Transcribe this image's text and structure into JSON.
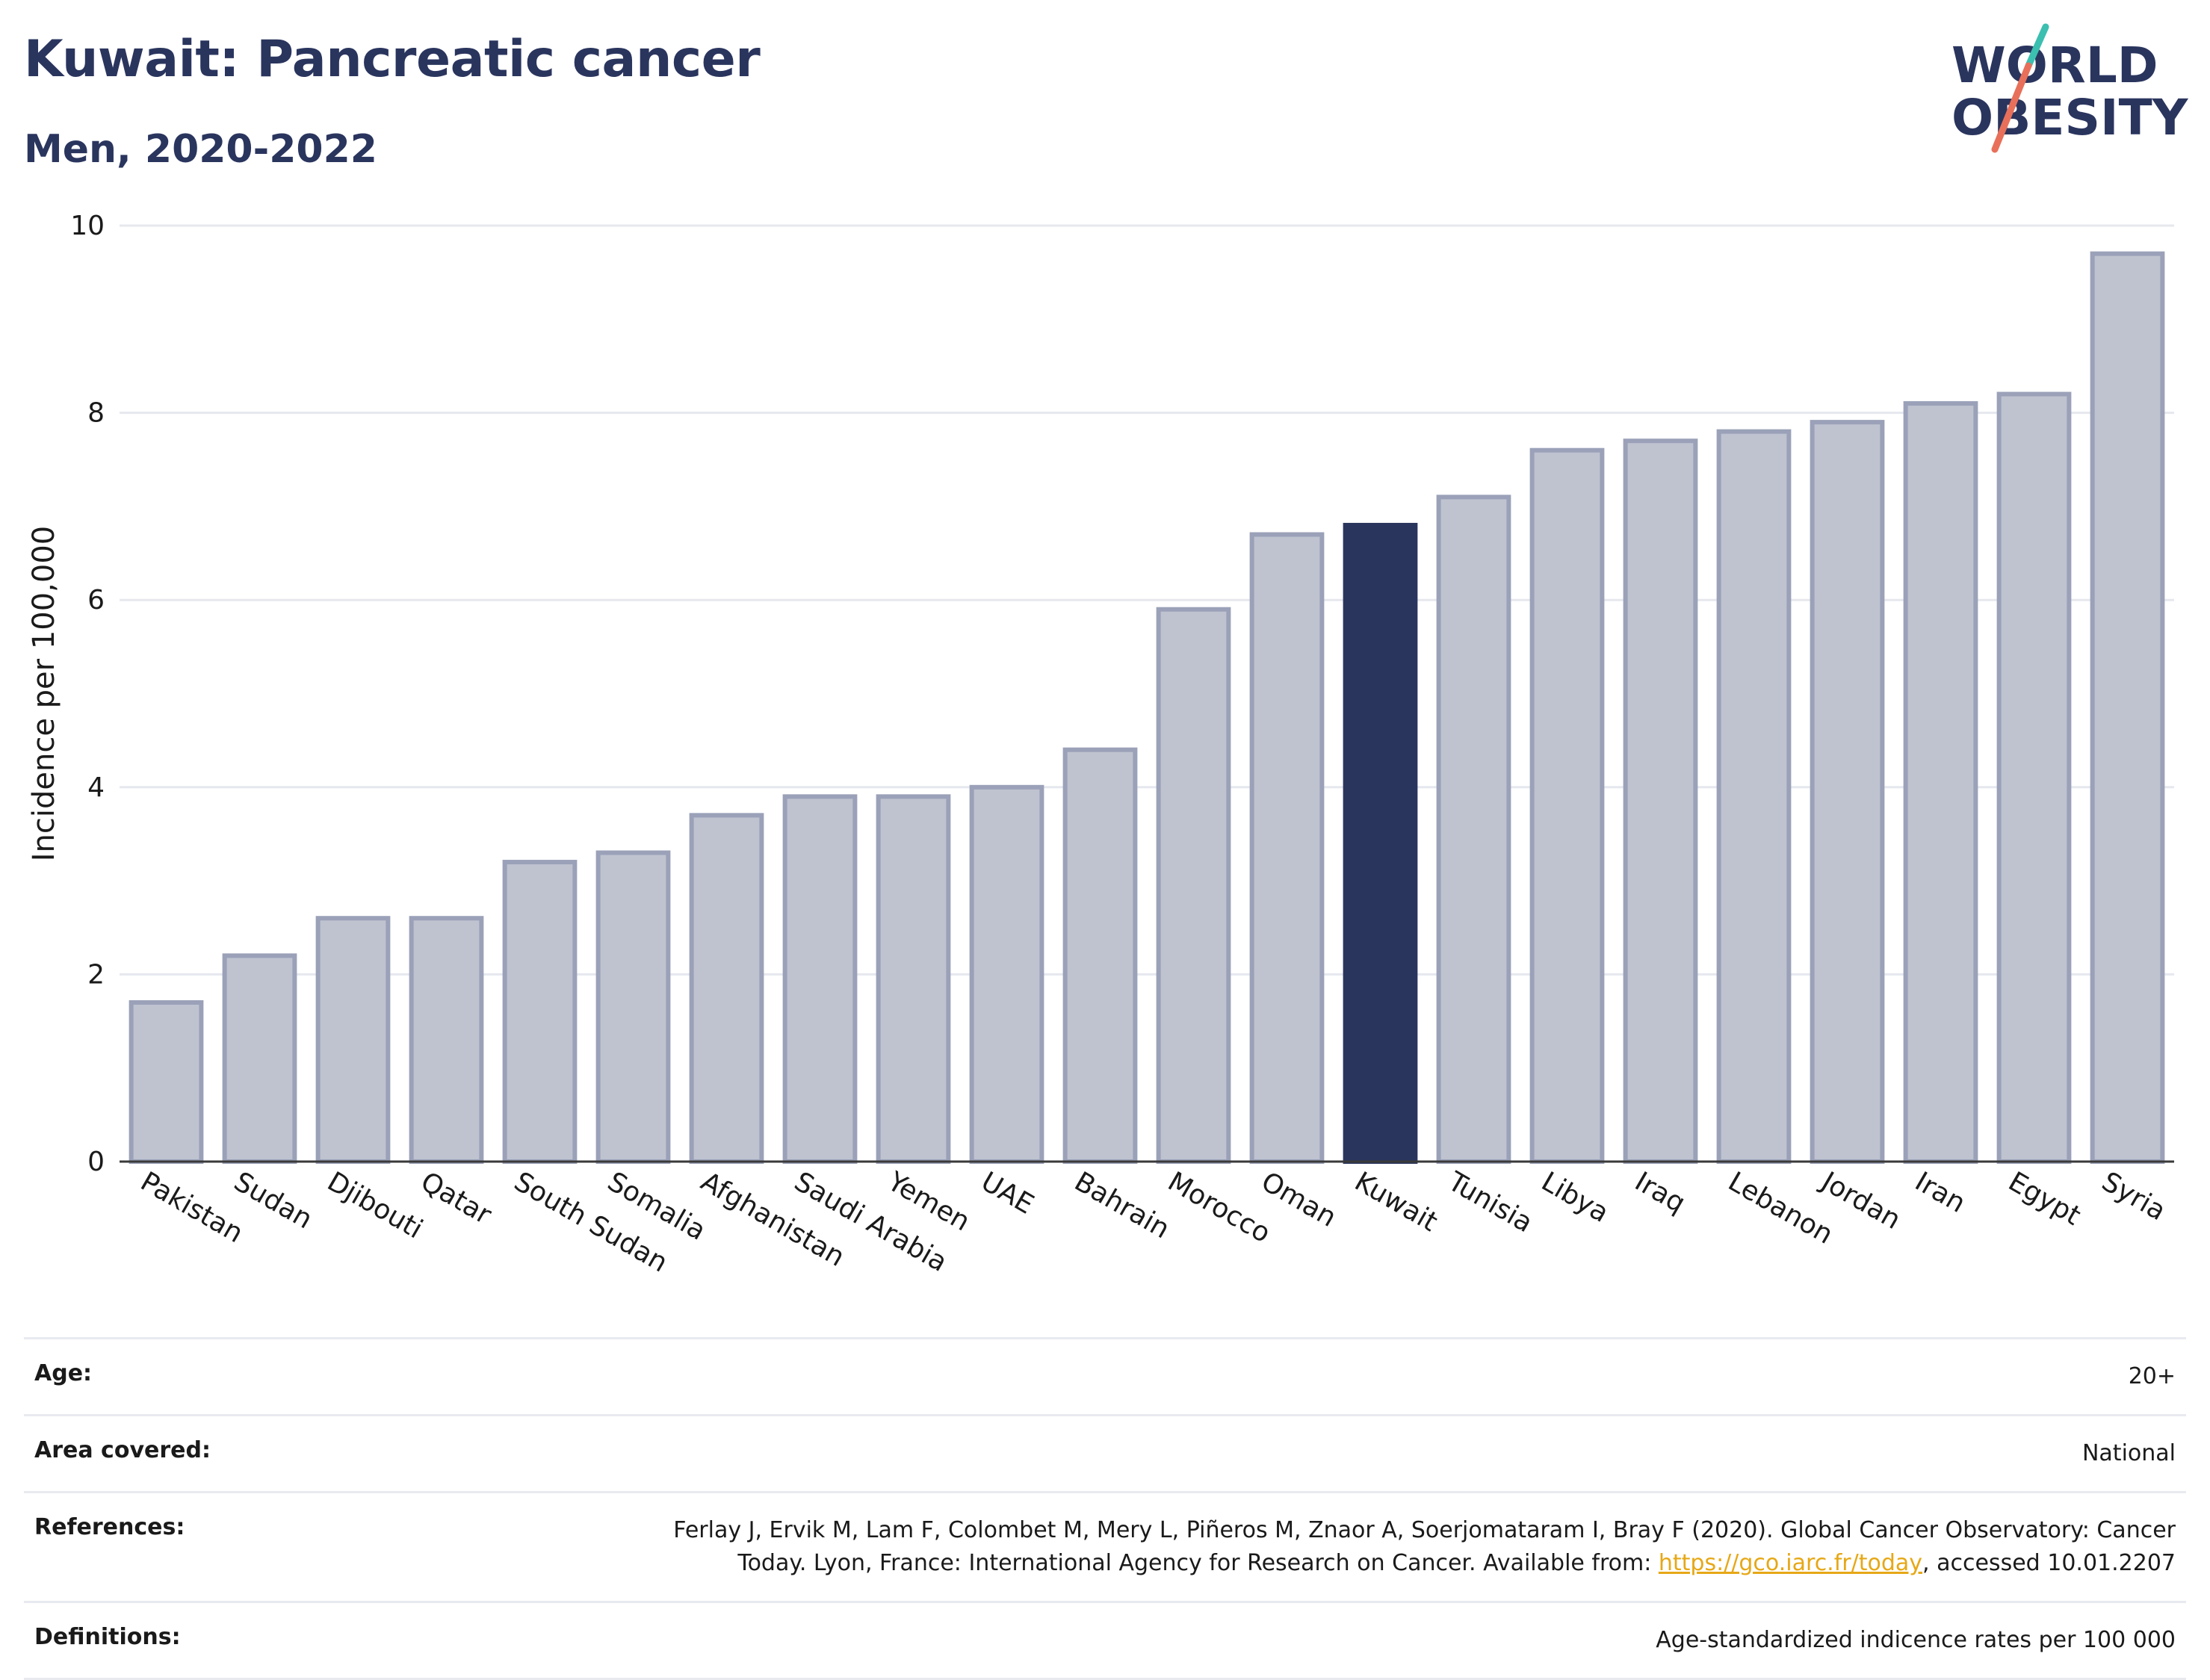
{
  "header": {
    "title": "Kuwait: Pancreatic cancer",
    "subtitle": "Men, 2020-2022"
  },
  "logo": {
    "line1": "WORLD",
    "line2": "OBESITY"
  },
  "chart_data": {
    "type": "bar",
    "ylabel": "Incidence per 100,000",
    "ylim": [
      0,
      10
    ],
    "yticks": [
      0,
      2,
      4,
      6,
      8,
      10
    ],
    "grid": true,
    "highlight": "Kuwait",
    "colors": {
      "bar": "#bfc3d0",
      "bar_edge": "#9aa1b8",
      "highlight": "#2a355e"
    },
    "categories": [
      "Pakistan",
      "Sudan",
      "Djibouti",
      "Qatar",
      "South Sudan",
      "Somalia",
      "Afghanistan",
      "Saudi Arabia",
      "Yemen",
      "UAE",
      "Bahrain",
      "Morocco",
      "Oman",
      "Kuwait",
      "Tunisia",
      "Libya",
      "Iraq",
      "Lebanon",
      "Jordan",
      "Iran",
      "Egypt",
      "Syria"
    ],
    "values": [
      1.7,
      2.2,
      2.6,
      2.6,
      3.2,
      3.3,
      3.7,
      3.9,
      3.9,
      4.0,
      4.4,
      5.9,
      6.7,
      6.8,
      7.1,
      7.6,
      7.7,
      7.8,
      7.9,
      8.1,
      8.2,
      9.7
    ]
  },
  "info": {
    "age_label": "Age:",
    "age_value": "20+",
    "area_label": "Area covered:",
    "area_value": "National",
    "references_label": "References:",
    "references_text": "Ferlay J, Ervik M, Lam F, Colombet M, Mery L, Piñeros M, Znaor A, Soerjomataram I, Bray F (2020). Global Cancer Observatory: Cancer Today. Lyon, France: International Agency for Research on Cancer. Available from:",
    "references_link": "https://gco.iarc.fr/today",
    "references_suffix": ", accessed 10.01.2207",
    "definitions_label": "Definitions:",
    "definitions_value": "Age-standardized indicence rates per 100 000"
  }
}
